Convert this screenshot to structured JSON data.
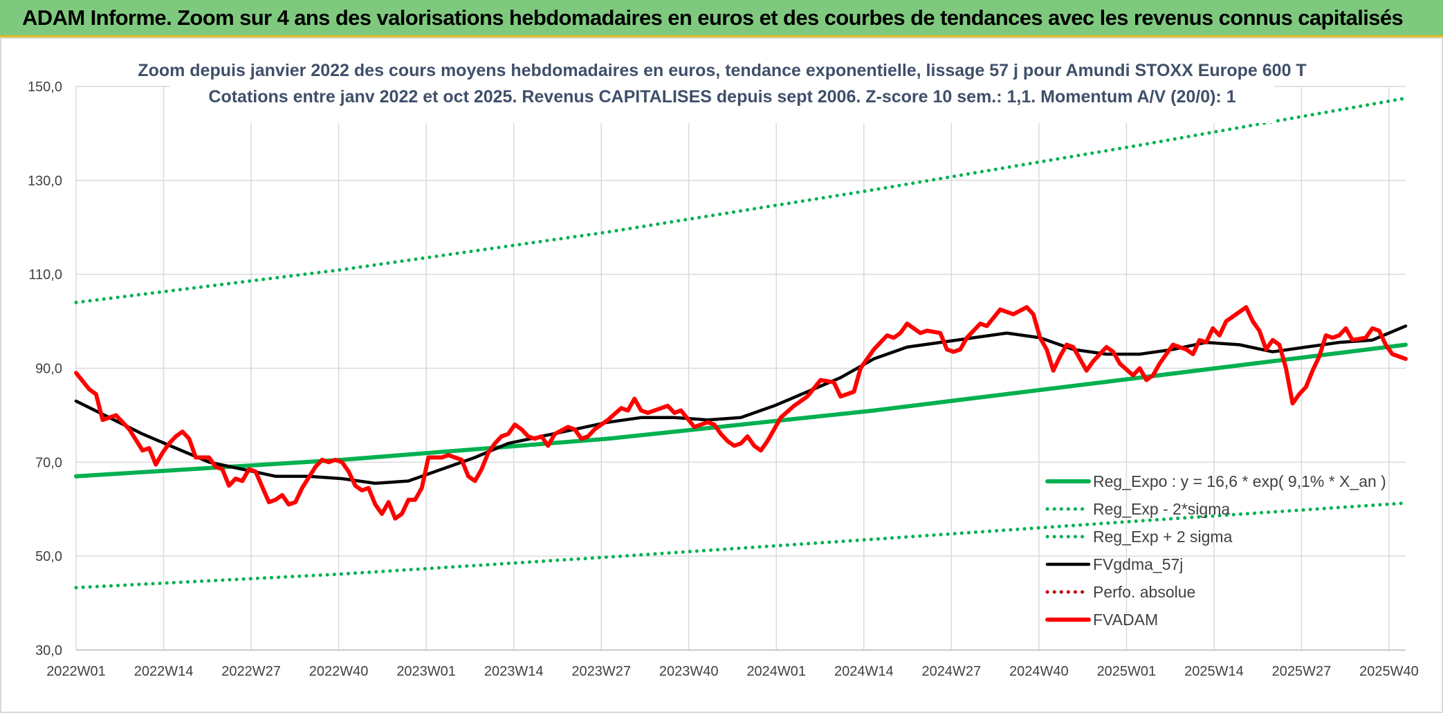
{
  "banner": {
    "title": "ADAM Informe. Zoom sur 4 ans des valorisations hebdomadaires en euros et des courbes de tendances avec les revenus connus capitalisés"
  },
  "colors": {
    "banner_bg": "#7fc97f",
    "banner_border": "#e8b923",
    "reg_expo": "#00b050",
    "fvgdma": "#000000",
    "fvadam": "#ff0000",
    "perfo": "#c00000",
    "grid": "#d9d9d9",
    "title": "#3f4f6a"
  },
  "chart_data": {
    "type": "line",
    "title": "Zoom depuis janvier 2022 des cours moyens hebdomadaires en euros, tendance exponentielle, lissage 57 j pour Amundi STOXX Europe 600 T",
    "subtitle": "Cotations entre janv 2022 et oct 2025. Revenus CAPITALISES depuis sept 2006. Z-score 10 sem.: 1,1. Momentum A/V (20/0): 1",
    "xlabel": "",
    "ylabel": "",
    "ylim": [
      30,
      150
    ],
    "yticks": [
      "30,0",
      "50,0",
      "70,0",
      "90,0",
      "110,0",
      "130,0",
      "150,0"
    ],
    "xticks": [
      "2022W01",
      "2022W14",
      "2022W27",
      "2022W40",
      "2023W01",
      "2023W14",
      "2023W27",
      "2023W40",
      "2024W01",
      "2024W14",
      "2024W27",
      "2024W40",
      "2025W01",
      "2025W14",
      "2025W27",
      "2025W40"
    ],
    "x_index_range": [
      0,
      200
    ],
    "grid": true,
    "legend_position": "bottom-right",
    "series": [
      {
        "name": "Reg_Expo : y = 16,6 * exp( 9,1% *  X_an )",
        "style": "solid-thick",
        "color": "#00b050",
        "points": [
          [
            0,
            67.0
          ],
          [
            40,
            70.5
          ],
          [
            80,
            75.0
          ],
          [
            120,
            81.0
          ],
          [
            160,
            88.0
          ],
          [
            200,
            95.0
          ]
        ]
      },
      {
        "name": "Reg_Exp - 2*sigma",
        "style": "dotted",
        "color": "#00b050",
        "points": [
          [
            0,
            43.3
          ],
          [
            40,
            46.2
          ],
          [
            80,
            49.8
          ],
          [
            120,
            53.6
          ],
          [
            160,
            57.5
          ],
          [
            200,
            61.3
          ]
        ]
      },
      {
        "name": "Reg_Exp + 2 sigma",
        "style": "dotted",
        "color": "#00b050",
        "points": [
          [
            0,
            104.0
          ],
          [
            40,
            111.0
          ],
          [
            80,
            119.0
          ],
          [
            120,
            128.0
          ],
          [
            160,
            137.5
          ],
          [
            200,
            147.5
          ]
        ]
      },
      {
        "name": "FVgdma_57j",
        "style": "solid",
        "color": "#000000",
        "points": [
          [
            0,
            83.0
          ],
          [
            5,
            79.5
          ],
          [
            10,
            76.0
          ],
          [
            15,
            73.0
          ],
          [
            20,
            70.0
          ],
          [
            25,
            68.5
          ],
          [
            30,
            67.0
          ],
          [
            35,
            67.0
          ],
          [
            40,
            66.5
          ],
          [
            45,
            65.5
          ],
          [
            50,
            66.0
          ],
          [
            55,
            68.5
          ],
          [
            60,
            71.0
          ],
          [
            65,
            74.0
          ],
          [
            70,
            75.5
          ],
          [
            75,
            77.0
          ],
          [
            80,
            78.5
          ],
          [
            85,
            79.5
          ],
          [
            90,
            79.5
          ],
          [
            95,
            79.0
          ],
          [
            100,
            79.5
          ],
          [
            105,
            82.0
          ],
          [
            110,
            85.0
          ],
          [
            115,
            88.0
          ],
          [
            120,
            92.0
          ],
          [
            125,
            94.5
          ],
          [
            130,
            95.5
          ],
          [
            135,
            96.5
          ],
          [
            140,
            97.5
          ],
          [
            145,
            96.5
          ],
          [
            150,
            94.0
          ],
          [
            155,
            93.0
          ],
          [
            160,
            93.0
          ],
          [
            165,
            94.0
          ],
          [
            170,
            95.5
          ],
          [
            175,
            95.0
          ],
          [
            180,
            93.5
          ],
          [
            185,
            94.5
          ],
          [
            190,
            95.5
          ],
          [
            195,
            96.0
          ],
          [
            200,
            99.0
          ]
        ]
      },
      {
        "name": "Perfo. absolue",
        "style": "dotted",
        "color": "#c00000",
        "points": []
      },
      {
        "name": "FVADAM",
        "style": "solid-thick",
        "color": "#ff0000",
        "points": [
          [
            0,
            89.0
          ],
          [
            2,
            85.5
          ],
          [
            3,
            84.5
          ],
          [
            4,
            79.0
          ],
          [
            6,
            80.0
          ],
          [
            8,
            77.0
          ],
          [
            10,
            72.5
          ],
          [
            11,
            73.0
          ],
          [
            12,
            69.5
          ],
          [
            13,
            72.0
          ],
          [
            14,
            74.0
          ],
          [
            15,
            75.5
          ],
          [
            16,
            76.5
          ],
          [
            17,
            75.0
          ],
          [
            18,
            71.0
          ],
          [
            20,
            71.0
          ],
          [
            21,
            69.0
          ],
          [
            22,
            68.5
          ],
          [
            23,
            65.0
          ],
          [
            24,
            66.5
          ],
          [
            25,
            66.0
          ],
          [
            26,
            68.5
          ],
          [
            27,
            68.0
          ],
          [
            29,
            61.5
          ],
          [
            30,
            62.0
          ],
          [
            31,
            63.0
          ],
          [
            32,
            61.0
          ],
          [
            33,
            61.5
          ],
          [
            34,
            64.5
          ],
          [
            36,
            69.0
          ],
          [
            37,
            70.5
          ],
          [
            38,
            70.0
          ],
          [
            39,
            70.5
          ],
          [
            40,
            70.0
          ],
          [
            41,
            68.0
          ],
          [
            42,
            65.0
          ],
          [
            43,
            64.0
          ],
          [
            44,
            64.5
          ],
          [
            45,
            61.0
          ],
          [
            46,
            59.0
          ],
          [
            47,
            61.5
          ],
          [
            48,
            58.0
          ],
          [
            49,
            59.0
          ],
          [
            50,
            62.0
          ],
          [
            51,
            62.0
          ],
          [
            52,
            64.5
          ],
          [
            53,
            71.0
          ],
          [
            55,
            71.0
          ],
          [
            56,
            71.5
          ],
          [
            57,
            71.0
          ],
          [
            58,
            70.5
          ],
          [
            59,
            67.0
          ],
          [
            60,
            66.0
          ],
          [
            61,
            68.5
          ],
          [
            62,
            72.0
          ],
          [
            63,
            74.0
          ],
          [
            64,
            75.5
          ],
          [
            65,
            76.0
          ],
          [
            66,
            78.0
          ],
          [
            67,
            77.0
          ],
          [
            68,
            75.5
          ],
          [
            69,
            75.0
          ],
          [
            70,
            75.5
          ],
          [
            71,
            73.5
          ],
          [
            72,
            76.0
          ],
          [
            74,
            77.5
          ],
          [
            75,
            77.0
          ],
          [
            76,
            75.0
          ],
          [
            77,
            75.5
          ],
          [
            78,
            77.0
          ],
          [
            80,
            79.0
          ],
          [
            82,
            81.5
          ],
          [
            83,
            81.0
          ],
          [
            84,
            83.5
          ],
          [
            85,
            81.0
          ],
          [
            86,
            80.5
          ],
          [
            87,
            81.0
          ],
          [
            89,
            82.0
          ],
          [
            90,
            80.5
          ],
          [
            91,
            81.0
          ],
          [
            93,
            77.5
          ],
          [
            95,
            78.5
          ],
          [
            96,
            78.0
          ],
          [
            97,
            76.0
          ],
          [
            98,
            74.5
          ],
          [
            99,
            73.5
          ],
          [
            100,
            74.0
          ],
          [
            101,
            75.5
          ],
          [
            102,
            73.5
          ],
          [
            103,
            72.5
          ],
          [
            104,
            74.5
          ],
          [
            106,
            79.5
          ],
          [
            108,
            82.0
          ],
          [
            110,
            84.0
          ],
          [
            112,
            87.5
          ],
          [
            114,
            87.0
          ],
          [
            115,
            84.0
          ],
          [
            117,
            85.0
          ],
          [
            118,
            90.0
          ],
          [
            120,
            94.0
          ],
          [
            122,
            97.0
          ],
          [
            123,
            96.5
          ],
          [
            124,
            97.5
          ],
          [
            125,
            99.5
          ],
          [
            126,
            98.5
          ],
          [
            127,
            97.5
          ],
          [
            128,
            98.0
          ],
          [
            130,
            97.5
          ],
          [
            131,
            94.0
          ],
          [
            132,
            93.5
          ],
          [
            133,
            94.0
          ],
          [
            134,
            96.5
          ],
          [
            136,
            99.5
          ],
          [
            137,
            99.0
          ],
          [
            139,
            102.5
          ],
          [
            141,
            101.5
          ],
          [
            143,
            103.0
          ],
          [
            144,
            101.5
          ],
          [
            145,
            96.5
          ],
          [
            146,
            94.0
          ],
          [
            147,
            89.5
          ],
          [
            148,
            92.5
          ],
          [
            149,
            95.0
          ],
          [
            150,
            94.5
          ],
          [
            152,
            89.5
          ],
          [
            153,
            91.5
          ],
          [
            154,
            93.0
          ],
          [
            155,
            94.5
          ],
          [
            156,
            93.5
          ],
          [
            157,
            91.0
          ],
          [
            159,
            88.5
          ],
          [
            160,
            90.0
          ],
          [
            161,
            87.5
          ],
          [
            162,
            88.5
          ],
          [
            163,
            91.0
          ],
          [
            165,
            95.0
          ],
          [
            167,
            94.0
          ],
          [
            168,
            93.0
          ],
          [
            169,
            96.0
          ],
          [
            170,
            95.5
          ],
          [
            171,
            98.5
          ],
          [
            172,
            97.0
          ],
          [
            173,
            100.0
          ],
          [
            175,
            102.0
          ],
          [
            176,
            103.0
          ],
          [
            177,
            100.0
          ],
          [
            178,
            98.0
          ],
          [
            179,
            94.0
          ],
          [
            180,
            96.0
          ],
          [
            181,
            95.0
          ],
          [
            182,
            90.0
          ],
          [
            183,
            82.5
          ],
          [
            184,
            84.5
          ],
          [
            185,
            86.0
          ],
          [
            186,
            89.5
          ],
          [
            187,
            92.5
          ],
          [
            188,
            97.0
          ],
          [
            189,
            96.5
          ],
          [
            190,
            97.0
          ],
          [
            191,
            98.5
          ],
          [
            192,
            96.0
          ],
          [
            194,
            96.5
          ],
          [
            195,
            98.5
          ],
          [
            196,
            98.0
          ],
          [
            197,
            95.0
          ],
          [
            198,
            93.0
          ],
          [
            199,
            92.5
          ],
          [
            200,
            92.0
          ]
        ]
      }
    ]
  }
}
